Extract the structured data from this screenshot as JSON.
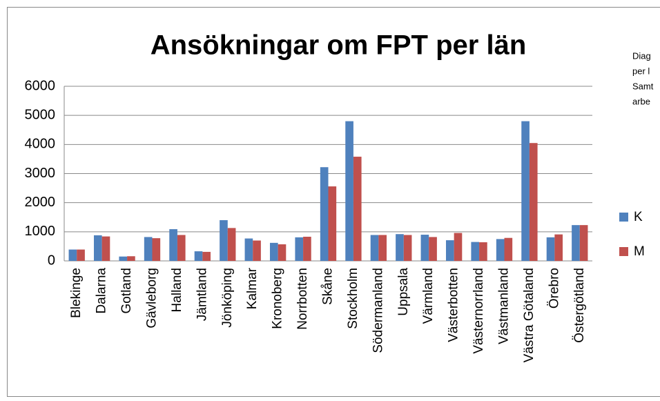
{
  "chart_data": {
    "type": "bar",
    "title": "Ansökningar om FPT per län",
    "categories": [
      "Blekinge",
      "Dalarna",
      "Gotland",
      "Gävleborg",
      "Halland",
      "Jämtland",
      "Jönköping",
      "Kalmar",
      "Kronoberg",
      "Norrbotten",
      "Skåne",
      "Stockholm",
      "Södermanland",
      "Uppsala",
      "Värmland",
      "Västerbotten",
      "Västernorrland",
      "Västmanland",
      "Västra Götaland",
      "Örebro",
      "Östergötland"
    ],
    "series": [
      {
        "name": "K",
        "color": "#4f81bd",
        "values": [
          390,
          880,
          150,
          820,
          1090,
          330,
          1400,
          770,
          620,
          810,
          3220,
          4800,
          890,
          920,
          900,
          710,
          650,
          750,
          4800,
          810,
          1230
        ]
      },
      {
        "name": "M",
        "color": "#c0504d",
        "values": [
          390,
          840,
          160,
          780,
          890,
          310,
          1130,
          700,
          570,
          830,
          2560,
          3580,
          890,
          890,
          820,
          960,
          640,
          790,
          4050,
          910,
          1230
        ]
      }
    ],
    "ylim": [
      0,
      6000
    ],
    "yticks": [
      0,
      1000,
      2000,
      3000,
      4000,
      5000,
      6000
    ],
    "grid": true,
    "legend": "right",
    "annotation": [
      "Diag",
      "per l",
      "Samt",
      "arbe"
    ]
  }
}
